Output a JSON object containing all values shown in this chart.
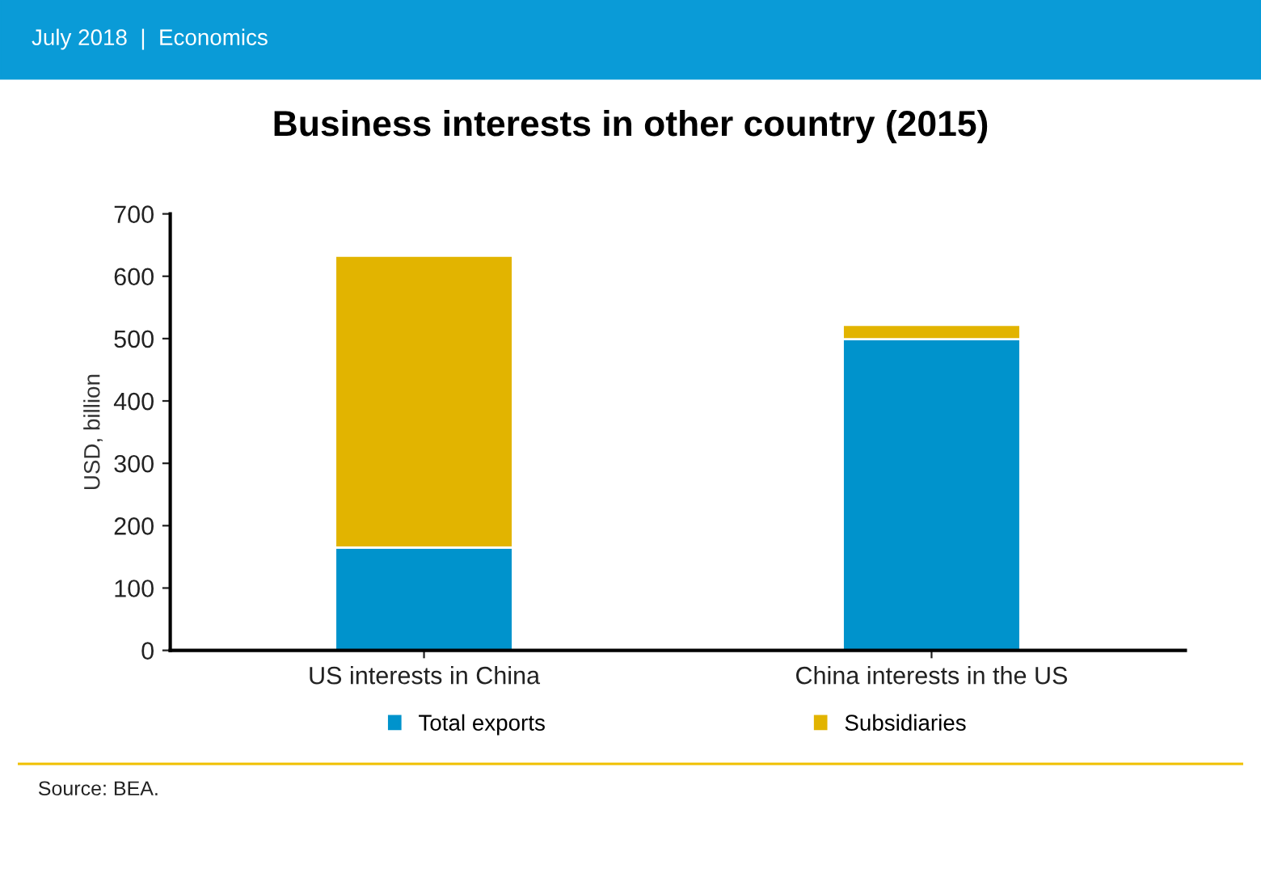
{
  "chart_data": {
    "type": "bar",
    "title": "Business interests in other country (2015)",
    "ylabel": "USD, billion",
    "categories": [
      "US interests in China",
      "China interests in the US"
    ],
    "stacked": true,
    "series": [
      {
        "name": "Total exports",
        "color": "#0093cc",
        "values": [
          165,
          499
        ]
      },
      {
        "name": "Subsidiaries",
        "color": "#e2b400",
        "values": [
          468,
          23
        ]
      }
    ],
    "ylim": [
      0,
      700
    ],
    "yticks": [
      0,
      100,
      200,
      300,
      400,
      500,
      600,
      700
    ],
    "grid": false,
    "legend": "bottom",
    "annotations": [
      "July 2018  |  Economics",
      "Source: BEA."
    ]
  }
}
